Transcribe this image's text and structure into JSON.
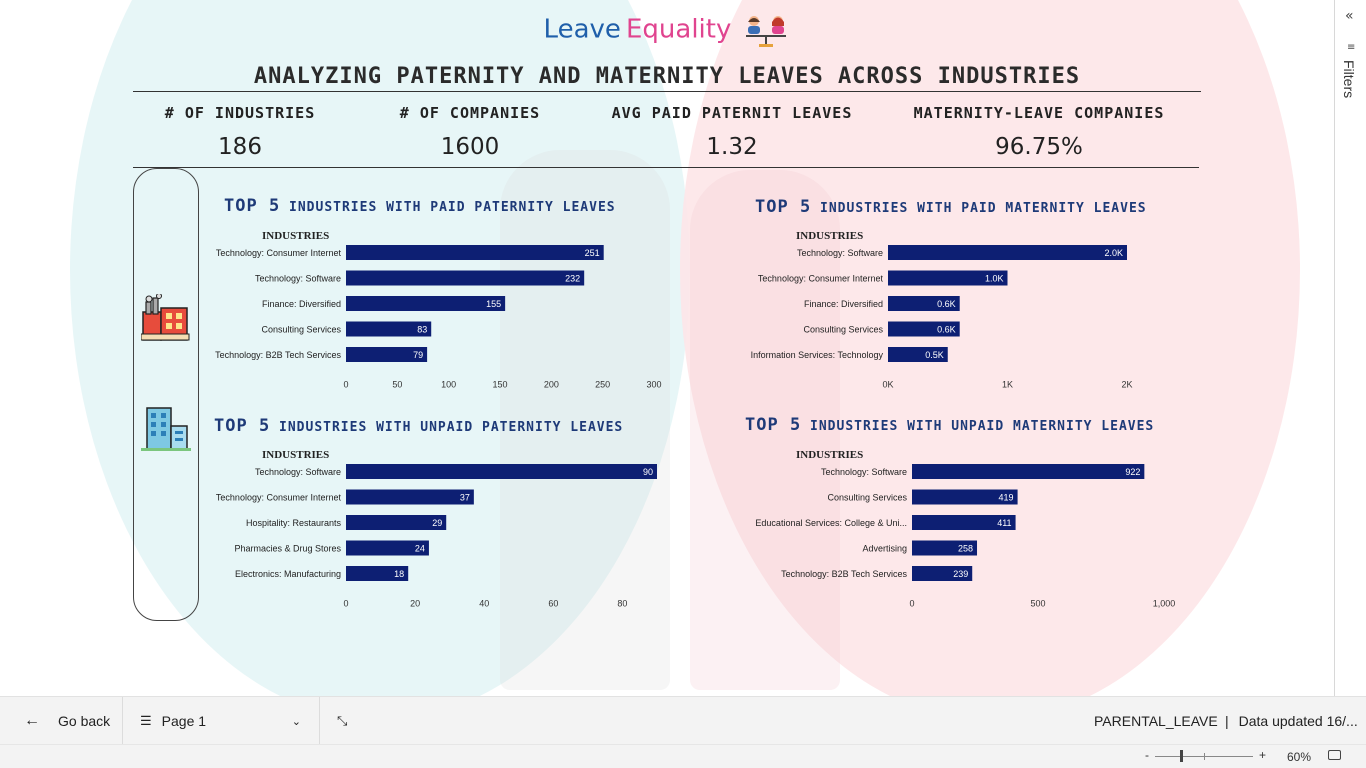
{
  "header": {
    "title_word1": "Leave",
    "title_word2": "Equality",
    "subtitle": "ANALYZING PATERNITY AND MATERNITY LEAVES ACROSS INDUSTRIES"
  },
  "kpis": [
    {
      "label": "# OF INDUSTRIES",
      "value": "186"
    },
    {
      "label": "# OF COMPANIES",
      "value": "1600"
    },
    {
      "label": "AVG PAID PATERNIT LEAVES",
      "value": "1.32"
    },
    {
      "label": "MATERNITY-LEAVE COMPANIES",
      "value": "96.75%"
    }
  ],
  "colors": {
    "bar": "#0d1f73",
    "title": "#1e3a78",
    "logo_blue": "#1f5faa",
    "logo_pink": "#e0448f"
  },
  "icons": [
    "factory-icon",
    "office-building-icon",
    "scale-people-icon"
  ],
  "chart_data": [
    {
      "id": "paid_paternity",
      "type": "bar",
      "title_num": "TOP 5",
      "title_rest": "INDUSTRIES WITH PAID PATERNITY LEAVES",
      "axis_title": "INDUSTRIES",
      "categories": [
        "Technology: Consumer Internet",
        "Technology: Software",
        "Finance: Diversified",
        "Consulting Services",
        "Technology: B2B Tech Services"
      ],
      "values": [
        251,
        232,
        155,
        83,
        79
      ],
      "labels": [
        "251",
        "232",
        "155",
        "83",
        "79"
      ],
      "xlim": [
        0,
        300
      ],
      "ticks": [
        0,
        50,
        100,
        150,
        200,
        250,
        300
      ],
      "tick_labels": [
        "0",
        "50",
        "100",
        "150",
        "200",
        "250",
        "300"
      ]
    },
    {
      "id": "paid_maternity",
      "type": "bar",
      "title_num": "TOP 5",
      "title_rest": "INDUSTRIES WITH PAID MATERNITY LEAVES",
      "axis_title": "INDUSTRIES",
      "categories": [
        "Technology: Software",
        "Technology: Consumer Internet",
        "Finance: Diversified",
        "Consulting Services",
        "Information Services: Technology"
      ],
      "values": [
        2000,
        1000,
        600,
        600,
        500
      ],
      "labels": [
        "2.0K",
        "1.0K",
        "0.6K",
        "0.6K",
        "0.5K"
      ],
      "xlim": [
        0,
        2000
      ],
      "ticks": [
        0,
        1000,
        2000
      ],
      "tick_labels": [
        "0K",
        "1K",
        "2K"
      ]
    },
    {
      "id": "unpaid_paternity",
      "type": "bar",
      "title_num": "TOP 5",
      "title_rest": "INDUSTRIES WITH UNPAID PATERNITY LEAVES",
      "axis_title": "INDUSTRIES",
      "categories": [
        "Technology: Software",
        "Technology: Consumer Internet",
        "Hospitality: Restaurants",
        "Pharmacies & Drug Stores",
        "Electronics: Manufacturing"
      ],
      "values": [
        90,
        37,
        29,
        24,
        18
      ],
      "labels": [
        "90",
        "37",
        "29",
        "24",
        "18"
      ],
      "xlim": [
        0,
        90
      ],
      "ticks": [
        0,
        20,
        40,
        60,
        80
      ],
      "tick_labels": [
        "0",
        "20",
        "40",
        "60",
        "80"
      ]
    },
    {
      "id": "unpaid_maternity",
      "type": "bar",
      "title_num": "TOP 5",
      "title_rest": "INDUSTRIES WITH UNPAID MATERNITY LEAVES",
      "axis_title": "INDUSTRIES",
      "categories": [
        "Technology: Software",
        "Consulting Services",
        "Educational Services: College & Uni...",
        "Advertising",
        "Technology: B2B Tech Services"
      ],
      "values": [
        922,
        419,
        411,
        258,
        239
      ],
      "labels": [
        "922",
        "419",
        "411",
        "258",
        "239"
      ],
      "xlim": [
        0,
        1000
      ],
      "ticks": [
        0,
        500,
        1000
      ],
      "tick_labels": [
        "0",
        "500",
        "1,000"
      ]
    }
  ],
  "filters_pane": {
    "label": "Filters"
  },
  "bottom_bar": {
    "go_back": "Go back",
    "page": "Page 1",
    "dataset": "PARENTAL_LEAVE",
    "updated": "Data updated 16/..."
  },
  "status_bar": {
    "zoom": "60%",
    "zoom_minus": "-",
    "zoom_plus": "+"
  }
}
